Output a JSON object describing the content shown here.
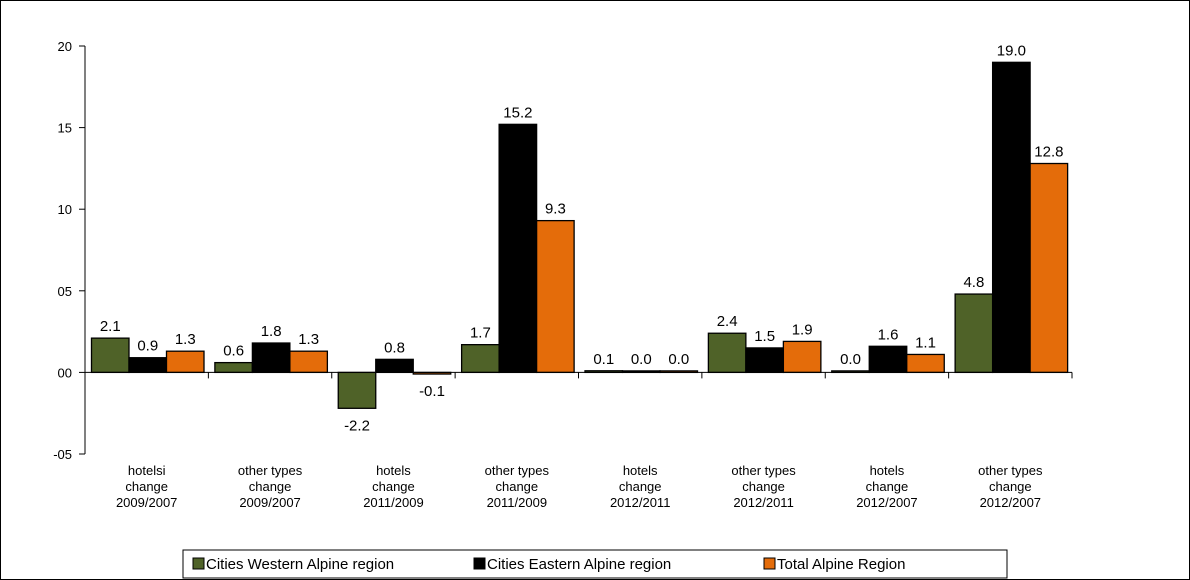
{
  "chart_data": {
    "type": "bar",
    "categories": [
      [
        "hotelsi",
        "change",
        "2009/2007"
      ],
      [
        "other types",
        "change",
        "2009/2007"
      ],
      [
        "hotels",
        "change",
        "2011/2009"
      ],
      [
        "other types",
        "change",
        "2011/2009"
      ],
      [
        "hotels",
        "change",
        "2012/2011"
      ],
      [
        "other types",
        "change",
        "2012/2011"
      ],
      [
        "hotels",
        "change",
        "2012/2007"
      ],
      [
        "other types",
        "change",
        "2012/2007"
      ]
    ],
    "series": [
      {
        "name": "Cities Western Alpine region",
        "color": "#4f6228",
        "values": [
          2.1,
          0.6,
          -2.2,
          1.7,
          0.1,
          2.4,
          0.0,
          4.8
        ],
        "labels": [
          "2.1",
          "0.6",
          "-2.2",
          "1.7",
          "0.1",
          "2.4",
          "0.0",
          "4.8"
        ]
      },
      {
        "name": "Cities Eastern Alpine region",
        "color": "#000000",
        "values": [
          0.9,
          1.8,
          0.8,
          15.2,
          0.0,
          1.5,
          1.6,
          19.0
        ],
        "labels": [
          "0.9",
          "1.8",
          "0.8",
          "15.2",
          "0.0",
          "1.5",
          "1.6",
          "19.0"
        ]
      },
      {
        "name": "Total Alpine Region",
        "color": "#e46c0a",
        "values": [
          1.3,
          1.3,
          -0.1,
          9.3,
          0.0,
          1.9,
          1.1,
          12.8
        ],
        "labels": [
          "1.3",
          "1.3",
          "-0.1",
          "9.3",
          "0.0",
          "1.9",
          "1.1",
          "12.8"
        ]
      }
    ],
    "yticks": [
      -5,
      0,
      5,
      10,
      15,
      20
    ],
    "ytick_labels": [
      "-05",
      "00",
      "05",
      "10",
      "15",
      "20"
    ],
    "ylim": [
      -5,
      20
    ],
    "title": "",
    "xlabel": "",
    "ylabel": "",
    "grid": false,
    "legend_position": "bottom"
  }
}
